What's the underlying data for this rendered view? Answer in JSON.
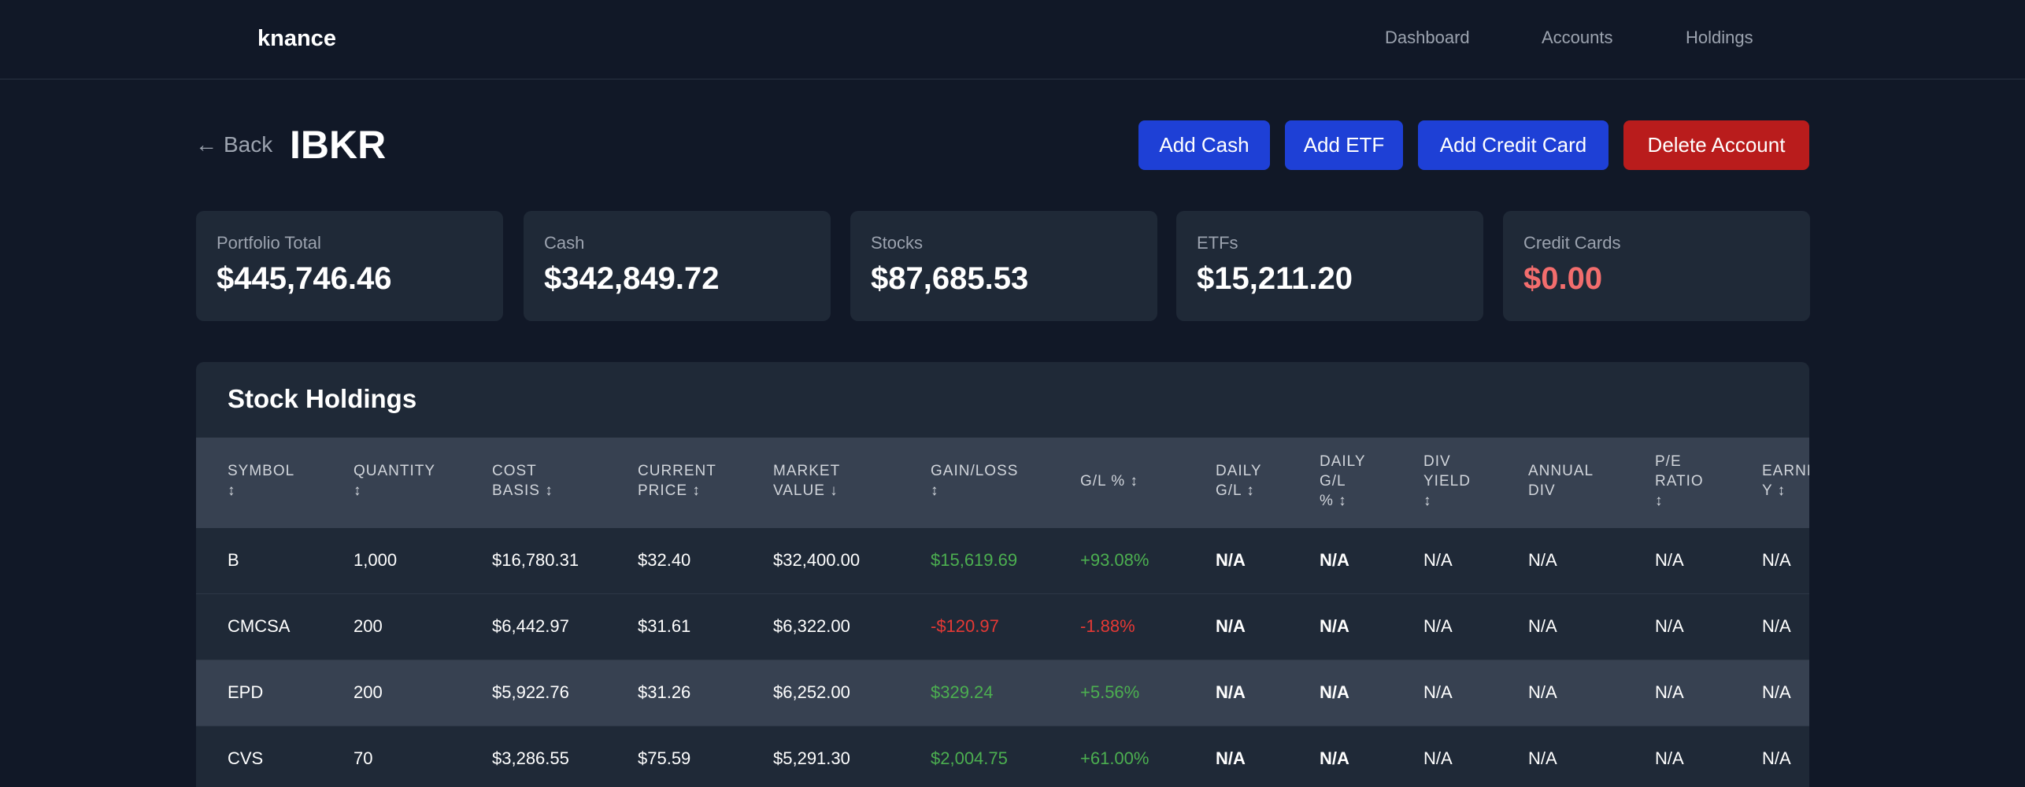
{
  "nav": {
    "brand": "knance",
    "links": [
      "Dashboard",
      "Accounts",
      "Holdings"
    ]
  },
  "header": {
    "back_label": "Back",
    "back_arrow": "←",
    "title": "IBKR",
    "buttons": {
      "add_cash": "Add Cash",
      "add_etf": "Add ETF",
      "add_credit_card": "Add Credit Card",
      "delete_account": "Delete Account"
    }
  },
  "summary": [
    {
      "label": "Portfolio Total",
      "value": "$445,746.46"
    },
    {
      "label": "Cash",
      "value": "$342,849.72"
    },
    {
      "label": "Stocks",
      "value": "$87,685.53"
    },
    {
      "label": "ETFs",
      "value": "$15,211.20"
    },
    {
      "label": "Credit Cards",
      "value": "$0.00"
    }
  ],
  "holdings": {
    "title": "Stock Holdings",
    "columns": [
      "SYMBOL\n↕",
      "QUANTITY\n↕",
      "COST\nBASIS ↕",
      "CURRENT\nPRICE ↕",
      "MARKET\nVALUE ↓",
      "GAIN/LOSS\n↕",
      "G/L % ↕",
      "DAILY\nG/L ↕",
      "DAILY\nG/L\n% ↕",
      "DIV\nYIELD\n↕",
      "ANNUAL\nDIV",
      "P/E\nRATIO\n↕",
      "EARNI\nY ↕"
    ],
    "rows": [
      {
        "symbol": "B",
        "quantity": "1,000",
        "cost_basis": "$16,780.31",
        "current_price": "$32.40",
        "market_value": "$32,400.00",
        "gain_loss": "$15,619.69",
        "gl_pct": "+93.08%",
        "daily_gl": "N/A",
        "daily_gl_pct": "N/A",
        "div_yield": "N/A",
        "annual_div": "N/A",
        "pe_ratio": "N/A",
        "earnings": "N/A"
      },
      {
        "symbol": "CMCSA",
        "quantity": "200",
        "cost_basis": "$6,442.97",
        "current_price": "$31.61",
        "market_value": "$6,322.00",
        "gain_loss": "-$120.97",
        "gl_pct": "-1.88%",
        "daily_gl": "N/A",
        "daily_gl_pct": "N/A",
        "div_yield": "N/A",
        "annual_div": "N/A",
        "pe_ratio": "N/A",
        "earnings": "N/A"
      },
      {
        "symbol": "EPD",
        "quantity": "200",
        "cost_basis": "$5,922.76",
        "current_price": "$31.26",
        "market_value": "$6,252.00",
        "gain_loss": "$329.24",
        "gl_pct": "+5.56%",
        "daily_gl": "N/A",
        "daily_gl_pct": "N/A",
        "div_yield": "N/A",
        "annual_div": "N/A",
        "pe_ratio": "N/A",
        "earnings": "N/A"
      },
      {
        "symbol": "CVS",
        "quantity": "70",
        "cost_basis": "$3,286.55",
        "current_price": "$75.59",
        "market_value": "$5,291.30",
        "gain_loss": "$2,004.75",
        "gl_pct": "+61.00%",
        "daily_gl": "N/A",
        "daily_gl_pct": "N/A",
        "div_yield": "N/A",
        "annual_div": "N/A",
        "pe_ratio": "N/A",
        "earnings": "N/A"
      }
    ]
  },
  "colors": {
    "background": "#111827",
    "card": "#1f2937",
    "header_row": "#374151",
    "primary_button": "#1e40d6",
    "danger_button": "#b91c1c",
    "gain": "#4caf50",
    "loss": "#e53935",
    "credit_value": "#f26d6d"
  }
}
